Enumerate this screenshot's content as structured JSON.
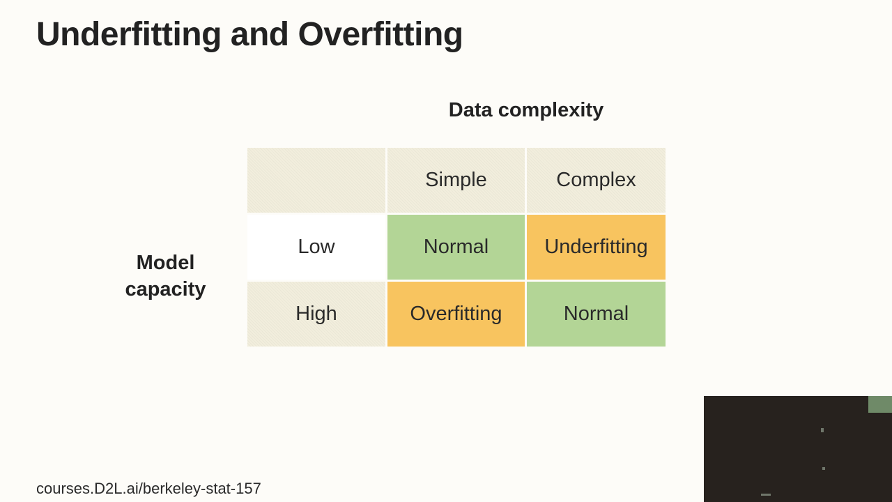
{
  "slide": {
    "title": "Underfitting and Overfitting",
    "footer": "courses.D2L.ai/berkeley-stat-157"
  },
  "matrix": {
    "column_header_title": "Data complexity",
    "row_header_title": [
      "Model",
      "capacity"
    ],
    "columns": [
      "Simple",
      "Complex"
    ],
    "rows": [
      {
        "label": "Low",
        "cells": [
          {
            "text": "Normal",
            "color": "#b3d596"
          },
          {
            "text": "Underfitting",
            "color": "#f8c45f"
          }
        ]
      },
      {
        "label": "High",
        "cells": [
          {
            "text": "Overfitting",
            "color": "#f8c45f"
          },
          {
            "text": "Normal",
            "color": "#b3d596"
          }
        ]
      }
    ]
  }
}
